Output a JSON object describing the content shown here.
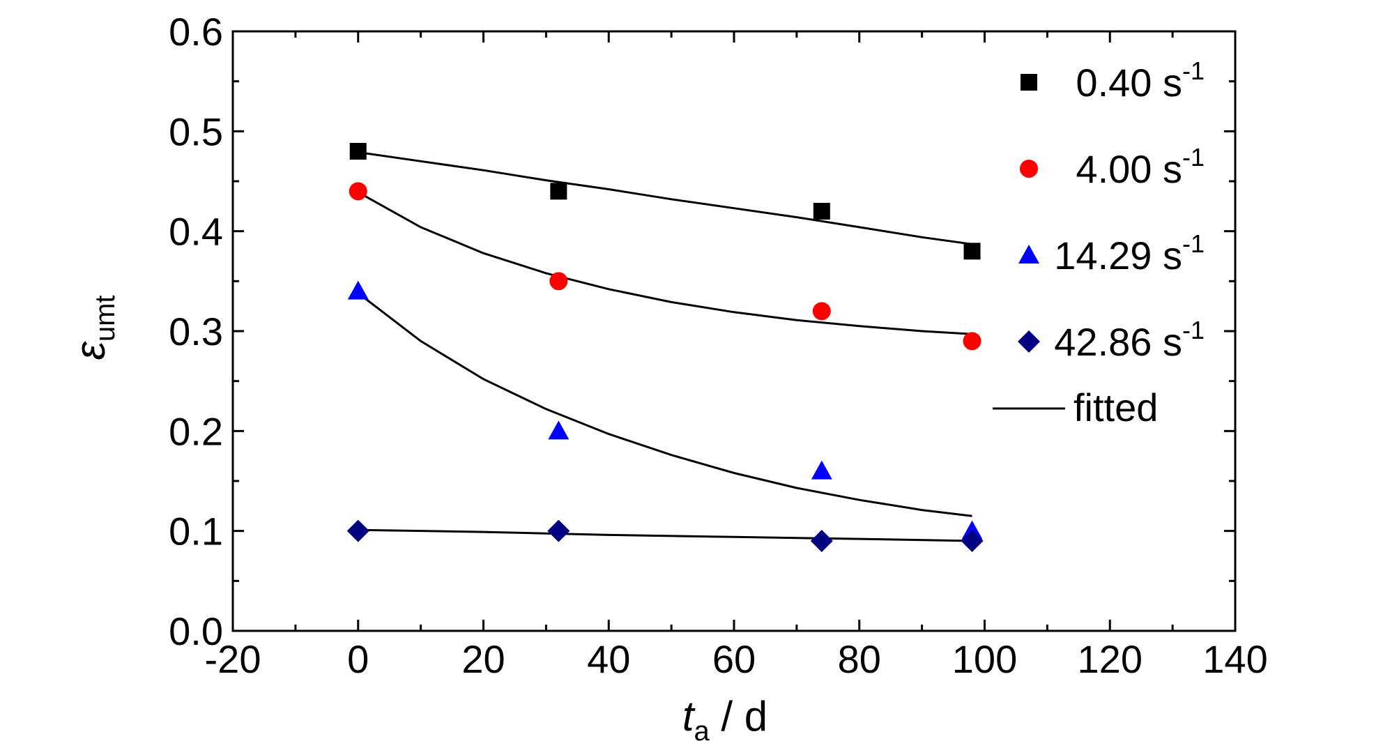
{
  "chart_data": {
    "type": "scatter",
    "x_label_main": "t",
    "x_label_sub": "a",
    "x_label_rest": " / d",
    "y_label_main": "ε",
    "y_label_sub": "umt",
    "xlim": [
      -20,
      140
    ],
    "ylim": [
      0.0,
      0.6
    ],
    "x_ticks": [
      -20,
      0,
      20,
      40,
      60,
      80,
      100,
      120,
      140
    ],
    "x_tick_labels": [
      "-20",
      "0",
      "20",
      "40",
      "60",
      "80",
      "100",
      "120",
      "140"
    ],
    "y_ticks": [
      0.0,
      0.1,
      0.2,
      0.3,
      0.4,
      0.5,
      0.6
    ],
    "y_tick_labels": [
      "0.0",
      "0.1",
      "0.2",
      "0.3",
      "0.4",
      "0.5",
      "0.6"
    ],
    "series": [
      {
        "name": "0.40 s",
        "name_sup": "-1",
        "marker": "square",
        "color": "#000000",
        "x": [
          0,
          32,
          74,
          98
        ],
        "y": [
          0.48,
          0.44,
          0.42,
          0.38
        ]
      },
      {
        "name": "4.00 s",
        "name_sup": "-1",
        "marker": "circle",
        "color": "#ff0000",
        "x": [
          0,
          32,
          74,
          98
        ],
        "y": [
          0.44,
          0.35,
          0.32,
          0.29
        ]
      },
      {
        "name": "14.29 s",
        "name_sup": "-1",
        "marker": "triangle",
        "color": "#0000ff",
        "x": [
          0,
          32,
          74,
          98
        ],
        "y": [
          0.34,
          0.2,
          0.16,
          0.1
        ]
      },
      {
        "name": "42.86 s",
        "name_sup": "-1",
        "marker": "diamond",
        "color": "#000080",
        "x": [
          0,
          32,
          74,
          98
        ],
        "y": [
          0.1,
          0.1,
          0.09,
          0.09
        ]
      }
    ],
    "fitted": {
      "name": "fitted",
      "color": "#000000",
      "curves": [
        {
          "x": [
            0,
            10,
            20,
            30,
            40,
            50,
            60,
            70,
            80,
            90,
            98
          ],
          "y": [
            0.479,
            0.47,
            0.461,
            0.451,
            0.442,
            0.432,
            0.423,
            0.414,
            0.404,
            0.394,
            0.387
          ]
        },
        {
          "x": [
            0,
            10,
            20,
            30,
            40,
            50,
            60,
            70,
            80,
            90,
            98
          ],
          "y": [
            0.439,
            0.404,
            0.378,
            0.358,
            0.342,
            0.329,
            0.319,
            0.311,
            0.305,
            0.3,
            0.297
          ]
        },
        {
          "x": [
            0,
            10,
            20,
            30,
            40,
            50,
            60,
            70,
            80,
            90,
            98
          ],
          "y": [
            0.338,
            0.29,
            0.252,
            0.222,
            0.197,
            0.176,
            0.158,
            0.143,
            0.131,
            0.121,
            0.115
          ]
        },
        {
          "x": [
            0,
            20,
            40,
            60,
            80,
            98
          ],
          "y": [
            0.101,
            0.099,
            0.096,
            0.094,
            0.092,
            0.09
          ]
        }
      ]
    },
    "legend_position": "top-right",
    "grid": false
  }
}
